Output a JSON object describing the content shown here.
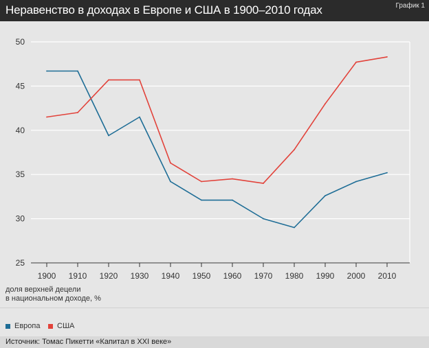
{
  "header": {
    "title": "Неравенство в доходах в Европе и США в 1900–2010 годах",
    "badge": "График 1"
  },
  "source": "Источник: Томас Пикетти «Капитал в XXI веке»",
  "chart_data": {
    "type": "line",
    "title": "Неравенство в доходах в Европе и США в 1900–2010 годах",
    "xlabel": "",
    "ylabel_lines": [
      "доля верхней децели",
      "в национальном доходе, %"
    ],
    "x": [
      1900,
      1910,
      1920,
      1930,
      1940,
      1950,
      1960,
      1970,
      1980,
      1990,
      2000,
      2010
    ],
    "xticks": [
      "1900",
      "1910",
      "1920",
      "1930",
      "1940",
      "1950",
      "1960",
      "1970",
      "1980",
      "1990",
      "2000",
      "2010"
    ],
    "yticks": [
      "25",
      "30",
      "35",
      "40",
      "45",
      "50"
    ],
    "ylim": [
      25,
      50
    ],
    "grid": "horizontal",
    "legend_position": "bottom-left",
    "series": [
      {
        "name": "Европа",
        "color": "#1e6d96",
        "values": [
          46.7,
          46.7,
          39.4,
          41.5,
          34.2,
          32.1,
          32.1,
          30.0,
          29.0,
          32.6,
          34.2,
          35.2
        ]
      },
      {
        "name": "США",
        "color": "#e2423a",
        "values": [
          41.5,
          42.0,
          45.7,
          45.7,
          36.3,
          34.2,
          34.5,
          34.0,
          37.8,
          43.0,
          47.7,
          48.3
        ]
      }
    ]
  }
}
